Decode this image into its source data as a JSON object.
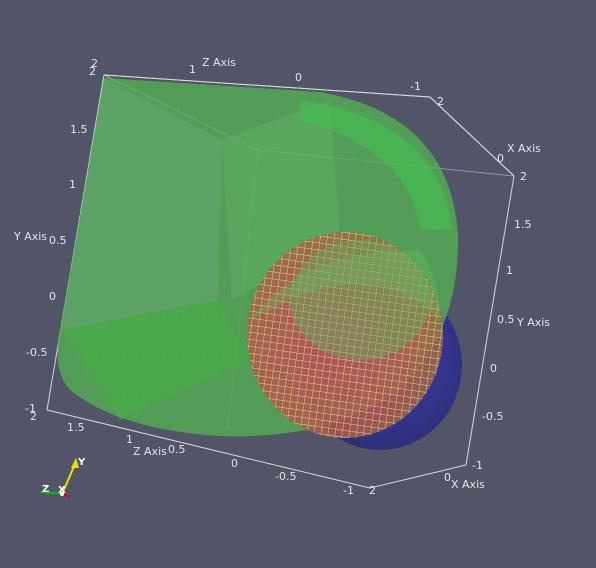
{
  "axes": {
    "top_z": {
      "title": "Z Axis",
      "ticks": [
        "2",
        "1",
        "0",
        "-1"
      ]
    },
    "top_x": {
      "title": "X Axis",
      "ticks": [
        "2",
        "0"
      ]
    },
    "left_y": {
      "title": "Y Axis",
      "ticks": [
        "2",
        "1.5",
        "1",
        "0.5",
        "0",
        "-0.5",
        "-1"
      ]
    },
    "right_y": {
      "title": "Y Axis",
      "ticks": [
        "2",
        "1.5",
        "1",
        "0.5",
        "0",
        "-0.5",
        "-1"
      ]
    },
    "bottom_z": {
      "title": "Z Axis",
      "ticks": [
        "2",
        "1.5",
        "1",
        "0.5",
        "0",
        "-0.5",
        "-1"
      ]
    },
    "bottom_x": {
      "title": "X Axis",
      "ticks": [
        "2",
        "0"
      ]
    }
  },
  "orientation": {
    "x": "X",
    "y": "Y",
    "z": "Z"
  },
  "colors": {
    "background": "#525467",
    "green_object": "#4fb74f",
    "blue_sphere": "#2d2d9a",
    "mesh_sphere": "#e7e08a",
    "mesh_fill": "#b8485b",
    "axis_line": "#d9d9d9"
  }
}
